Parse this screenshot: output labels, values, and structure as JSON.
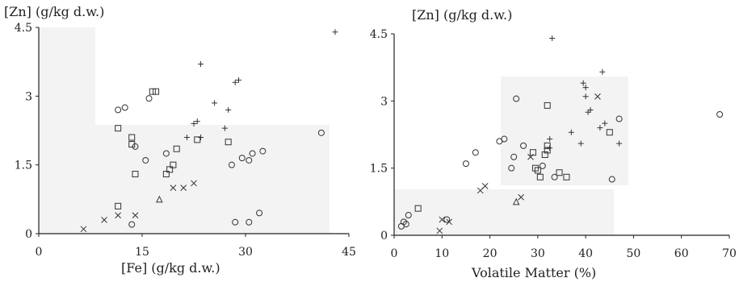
{
  "chart_data": [
    {
      "type": "scatter",
      "ylabel": "[Zn] (g/kg d.w.)",
      "xlabel": "[Fe] (g/kg d.w.)",
      "xlim": [
        0,
        45
      ],
      "ylim": [
        0,
        4.5
      ],
      "x_ticks": [
        "0",
        "15",
        "30",
        "45"
      ],
      "y_ticks": [
        "0",
        "1.5",
        "3",
        "4.5"
      ],
      "grid": false,
      "points": [
        {
          "x": 6.5,
          "y": 0.1,
          "m": "x"
        },
        {
          "x": 9.5,
          "y": 0.3,
          "m": "x"
        },
        {
          "x": 11.5,
          "y": 0.4,
          "m": "x"
        },
        {
          "x": 13.5,
          "y": 0.2,
          "m": "o"
        },
        {
          "x": 14.0,
          "y": 0.4,
          "m": "x"
        },
        {
          "x": 17.5,
          "y": 0.75,
          "m": "tri"
        },
        {
          "x": 19.5,
          "y": 1.0,
          "m": "x"
        },
        {
          "x": 21.0,
          "y": 1.0,
          "m": "x"
        },
        {
          "x": 22.5,
          "y": 1.1,
          "m": "x"
        },
        {
          "x": 11.5,
          "y": 0.6,
          "m": "sq"
        },
        {
          "x": 14.0,
          "y": 1.3,
          "m": "sq"
        },
        {
          "x": 15.5,
          "y": 1.6,
          "m": "o"
        },
        {
          "x": 13.5,
          "y": 2.1,
          "m": "sq"
        },
        {
          "x": 13.5,
          "y": 1.95,
          "m": "sq"
        },
        {
          "x": 14.0,
          "y": 1.9,
          "m": "o"
        },
        {
          "x": 11.5,
          "y": 2.7,
          "m": "o"
        },
        {
          "x": 11.5,
          "y": 2.3,
          "m": "sq"
        },
        {
          "x": 12.5,
          "y": 2.75,
          "m": "o"
        },
        {
          "x": 16.0,
          "y": 2.95,
          "m": "o"
        },
        {
          "x": 16.5,
          "y": 3.1,
          "m": "sq"
        },
        {
          "x": 17.0,
          "y": 3.1,
          "m": "sq"
        },
        {
          "x": 18.5,
          "y": 1.3,
          "m": "sq"
        },
        {
          "x": 19.0,
          "y": 1.4,
          "m": "sq"
        },
        {
          "x": 19.5,
          "y": 1.5,
          "m": "sq"
        },
        {
          "x": 18.5,
          "y": 1.75,
          "m": "o"
        },
        {
          "x": 20.0,
          "y": 1.85,
          "m": "sq"
        },
        {
          "x": 21.5,
          "y": 2.1,
          "m": "plus"
        },
        {
          "x": 23.0,
          "y": 2.05,
          "m": "sq"
        },
        {
          "x": 23.5,
          "y": 2.1,
          "m": "plus"
        },
        {
          "x": 22.5,
          "y": 2.4,
          "m": "plus"
        },
        {
          "x": 23.0,
          "y": 2.45,
          "m": "plus"
        },
        {
          "x": 23.5,
          "y": 3.7,
          "m": "plus"
        },
        {
          "x": 25.5,
          "y": 2.85,
          "m": "plus"
        },
        {
          "x": 27.0,
          "y": 2.3,
          "m": "plus"
        },
        {
          "x": 27.5,
          "y": 2.7,
          "m": "plus"
        },
        {
          "x": 28.5,
          "y": 3.3,
          "m": "plus"
        },
        {
          "x": 29.0,
          "y": 3.35,
          "m": "plus"
        },
        {
          "x": 27.5,
          "y": 2.0,
          "m": "sq"
        },
        {
          "x": 28.0,
          "y": 1.5,
          "m": "o"
        },
        {
          "x": 29.5,
          "y": 1.65,
          "m": "o"
        },
        {
          "x": 30.5,
          "y": 1.6,
          "m": "o"
        },
        {
          "x": 31.0,
          "y": 1.75,
          "m": "o"
        },
        {
          "x": 32.5,
          "y": 1.8,
          "m": "o"
        },
        {
          "x": 28.5,
          "y": 0.25,
          "m": "o"
        },
        {
          "x": 30.5,
          "y": 0.25,
          "m": "o"
        },
        {
          "x": 32.0,
          "y": 0.45,
          "m": "o"
        },
        {
          "x": 41.0,
          "y": 2.2,
          "m": "o"
        },
        {
          "x": 43.0,
          "y": 4.4,
          "m": "plus"
        }
      ]
    },
    {
      "type": "scatter",
      "ylabel": "[Zn] (g/kg d.w.)",
      "xlabel": "Volatile Matter (%)",
      "xlim": [
        0,
        70
      ],
      "ylim": [
        0,
        4.5
      ],
      "x_ticks": [
        "0",
        "10",
        "20",
        "30",
        "40",
        "50",
        "60",
        "70"
      ],
      "y_ticks": [
        "0",
        "1.5",
        "3",
        "4.5"
      ],
      "grid": false,
      "points": [
        {
          "x": 1.5,
          "y": 0.2,
          "m": "o"
        },
        {
          "x": 2.0,
          "y": 0.3,
          "m": "o"
        },
        {
          "x": 2.5,
          "y": 0.25,
          "m": "o"
        },
        {
          "x": 3.0,
          "y": 0.45,
          "m": "o"
        },
        {
          "x": 5.0,
          "y": 0.6,
          "m": "sq"
        },
        {
          "x": 9.5,
          "y": 0.1,
          "m": "x"
        },
        {
          "x": 10.0,
          "y": 0.35,
          "m": "x"
        },
        {
          "x": 11.0,
          "y": 0.35,
          "m": "o"
        },
        {
          "x": 11.5,
          "y": 0.3,
          "m": "x"
        },
        {
          "x": 15.0,
          "y": 1.6,
          "m": "o"
        },
        {
          "x": 17.0,
          "y": 1.85,
          "m": "o"
        },
        {
          "x": 18.0,
          "y": 1.0,
          "m": "x"
        },
        {
          "x": 19.0,
          "y": 1.1,
          "m": "x"
        },
        {
          "x": 22.0,
          "y": 2.1,
          "m": "o"
        },
        {
          "x": 23.0,
          "y": 2.15,
          "m": "o"
        },
        {
          "x": 24.5,
          "y": 1.5,
          "m": "o"
        },
        {
          "x": 25.0,
          "y": 1.75,
          "m": "o"
        },
        {
          "x": 25.5,
          "y": 0.75,
          "m": "tri"
        },
        {
          "x": 26.5,
          "y": 0.85,
          "m": "x"
        },
        {
          "x": 25.5,
          "y": 3.05,
          "m": "o"
        },
        {
          "x": 27.0,
          "y": 2.0,
          "m": "o"
        },
        {
          "x": 28.5,
          "y": 1.75,
          "m": "x"
        },
        {
          "x": 29.0,
          "y": 1.85,
          "m": "sq"
        },
        {
          "x": 29.5,
          "y": 1.5,
          "m": "sq"
        },
        {
          "x": 30.0,
          "y": 1.45,
          "m": "sq"
        },
        {
          "x": 30.5,
          "y": 1.3,
          "m": "sq"
        },
        {
          "x": 31.0,
          "y": 1.55,
          "m": "o"
        },
        {
          "x": 31.5,
          "y": 1.8,
          "m": "sq"
        },
        {
          "x": 32.0,
          "y": 1.9,
          "m": "sq"
        },
        {
          "x": 32.0,
          "y": 2.0,
          "m": "sq"
        },
        {
          "x": 32.5,
          "y": 1.95,
          "m": "plus"
        },
        {
          "x": 32.5,
          "y": 2.15,
          "m": "plus"
        },
        {
          "x": 32.0,
          "y": 2.9,
          "m": "sq"
        },
        {
          "x": 33.5,
          "y": 1.3,
          "m": "o"
        },
        {
          "x": 34.5,
          "y": 1.4,
          "m": "sq"
        },
        {
          "x": 36.0,
          "y": 1.3,
          "m": "sq"
        },
        {
          "x": 37.0,
          "y": 2.3,
          "m": "plus"
        },
        {
          "x": 33.0,
          "y": 4.4,
          "m": "plus"
        },
        {
          "x": 39.0,
          "y": 2.05,
          "m": "plus"
        },
        {
          "x": 39.5,
          "y": 3.4,
          "m": "plus"
        },
        {
          "x": 40.0,
          "y": 3.3,
          "m": "plus"
        },
        {
          "x": 40.0,
          "y": 3.1,
          "m": "plus"
        },
        {
          "x": 40.5,
          "y": 2.75,
          "m": "plus"
        },
        {
          "x": 41.0,
          "y": 2.8,
          "m": "plus"
        },
        {
          "x": 42.5,
          "y": 3.1,
          "m": "x"
        },
        {
          "x": 43.0,
          "y": 2.4,
          "m": "plus"
        },
        {
          "x": 43.5,
          "y": 3.65,
          "m": "plus"
        },
        {
          "x": 44.0,
          "y": 2.5,
          "m": "plus"
        },
        {
          "x": 45.0,
          "y": 2.3,
          "m": "sq"
        },
        {
          "x": 45.5,
          "y": 1.25,
          "m": "o"
        },
        {
          "x": 47.0,
          "y": 2.05,
          "m": "plus"
        },
        {
          "x": 47.0,
          "y": 2.6,
          "m": "o"
        },
        {
          "x": 68.0,
          "y": 2.7,
          "m": "o"
        }
      ]
    }
  ]
}
